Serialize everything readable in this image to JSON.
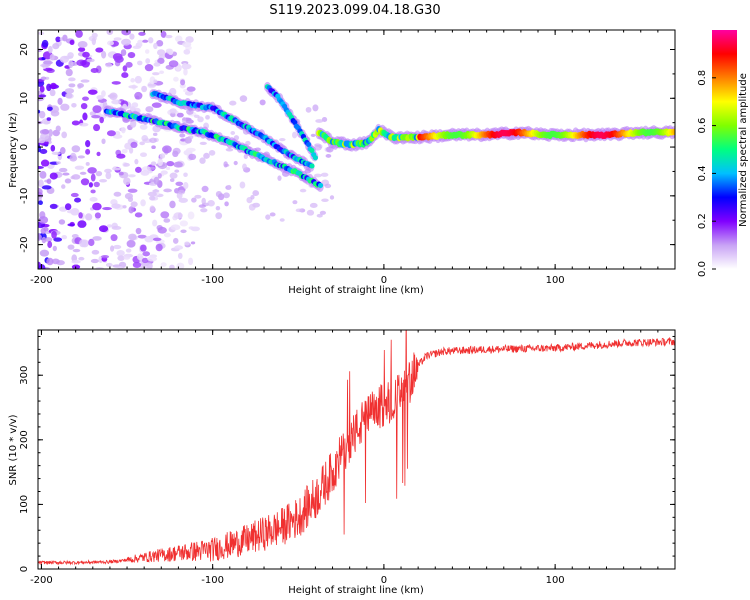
{
  "title": "S119.2023.099.04.18.G30",
  "colors": {
    "snr_line": "#f03030",
    "frame": "#000000",
    "background": "#ffffff"
  },
  "chart_data": [
    {
      "type": "heatmap",
      "xlabel": "Height of straight line (km)",
      "ylabel": "Frequency (Hz)",
      "xlim": [
        -202,
        170
      ],
      "ylim": [
        -25,
        24
      ],
      "x_ticks": [
        -200,
        -100,
        0,
        100
      ],
      "y_ticks": [
        -20,
        -10,
        0,
        10,
        20
      ],
      "colorbar": {
        "label": "Normalized spectral amplitude",
        "range": [
          0,
          1
        ],
        "ticks": [
          "0.0",
          "0.2",
          "0.4",
          "0.6",
          "0.8"
        ],
        "colormap": [
          "#ffffff",
          "#c8a2f5",
          "#8000ff",
          "#0000ff",
          "#00c0ff",
          "#00ff80",
          "#80ff00",
          "#ffff00",
          "#ff8000",
          "#ff0000",
          "#ff00a0"
        ]
      },
      "noise_region": {
        "x": [
          -202,
          -140
        ],
        "y": [
          -25,
          24
        ]
      },
      "tracks": [
        {
          "points": [
            [
              -162,
              7.5
            ],
            [
              -150,
              6.5
            ],
            [
              -135,
              5.5
            ],
            [
              -120,
              4.0
            ],
            [
              -105,
              3.0
            ],
            [
              -90,
              1.0
            ],
            [
              -75,
              -1.5
            ],
            [
              -62,
              -3.5
            ],
            [
              -52,
              -5.0
            ],
            [
              -42,
              -7.0
            ],
            [
              -37,
              -8.0
            ]
          ],
          "max_amp": 0.55
        },
        {
          "points": [
            [
              -135,
              11.0
            ],
            [
              -118,
              9.0
            ],
            [
              -100,
              8.0
            ],
            [
              -85,
              5.0
            ],
            [
              -72,
              2.5
            ],
            [
              -60,
              -0.5
            ],
            [
              -50,
              -2.5
            ],
            [
              -42,
              -4.0
            ]
          ],
          "max_amp": 0.5
        },
        {
          "points": [
            [
              -68,
              12.5
            ],
            [
              -60,
              9.5
            ],
            [
              -52,
              5.0
            ],
            [
              -45,
              1.0
            ],
            [
              -40,
              -2.0
            ]
          ],
          "max_amp": 0.5
        },
        {
          "points": [
            [
              -38,
              3.0
            ],
            [
              -30,
              1.0
            ],
            [
              -20,
              0.5
            ],
            [
              -10,
              0.8
            ],
            [
              -3,
              3.5
            ],
            [
              5,
              2.0
            ],
            [
              20,
              2.0
            ],
            [
              40,
              2.5
            ],
            [
              60,
              2.5
            ],
            [
              80,
              3.0
            ],
            [
              95,
              2.5
            ],
            [
              110,
              2.5
            ],
            [
              130,
              2.5
            ],
            [
              150,
              3.0
            ],
            [
              170,
              3.0
            ]
          ],
          "max_amp": 0.95
        }
      ]
    },
    {
      "type": "line",
      "xlabel": "Height of straight line (km)",
      "ylabel": "SNR (10 * v/v)",
      "xlim": [
        -202,
        170
      ],
      "ylim": [
        0,
        370
      ],
      "x_ticks": [
        -200,
        -100,
        0,
        100
      ],
      "y_ticks": [
        0,
        100,
        200,
        300
      ],
      "series": [
        {
          "points": [
            [
              -202,
              10
            ],
            [
              -180,
              10
            ],
            [
              -160,
              11
            ],
            [
              -150,
              14
            ],
            [
              -140,
              18
            ],
            [
              -120,
              25
            ],
            [
              -100,
              30
            ],
            [
              -80,
              45
            ],
            [
              -60,
              65
            ],
            [
              -50,
              80
            ],
            [
              -40,
              110
            ],
            [
              -30,
              150
            ],
            [
              -20,
              200
            ],
            [
              -10,
              235
            ],
            [
              0,
              255
            ],
            [
              10,
              270
            ],
            [
              15,
              290
            ],
            [
              20,
              315
            ],
            [
              25,
              330
            ],
            [
              35,
              337
            ],
            [
              60,
              340
            ],
            [
              100,
              342
            ],
            [
              140,
              350
            ],
            [
              170,
              352
            ]
          ],
          "color": "#f03030"
        }
      ]
    }
  ]
}
